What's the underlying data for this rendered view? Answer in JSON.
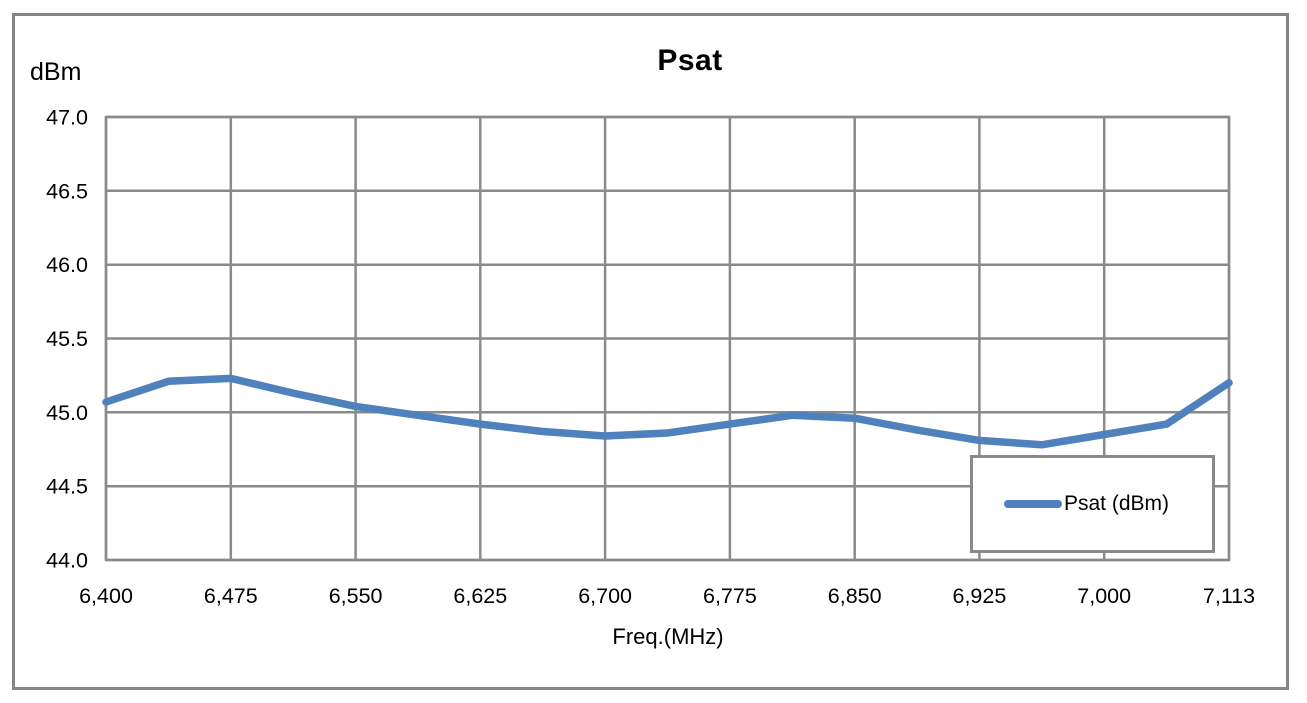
{
  "chart_data": {
    "type": "line",
    "title": "Psat",
    "y_unit_label": "dBm",
    "xlabel": "Freq.(MHz)",
    "ylabel": "",
    "x_tick_labels": [
      "6,400",
      "6,475",
      "6,550",
      "6,625",
      "6,700",
      "6,775",
      "6,850",
      "6,925",
      "7,000",
      "7,113"
    ],
    "x_tick_values": [
      6400,
      6475,
      6550,
      6625,
      6700,
      6775,
      6850,
      6925,
      7000,
      7113
    ],
    "y_tick_labels": [
      "47.0",
      "46.5",
      "46.0",
      "45.5",
      "45.0",
      "44.5",
      "44.0"
    ],
    "y_ticks": [
      47.0,
      46.5,
      46.0,
      45.5,
      45.0,
      44.5,
      44.0
    ],
    "ylim": [
      44.0,
      47.0
    ],
    "grid": "both",
    "legend": {
      "position": "inside-bottom-right",
      "entries": [
        "Psat (dBm)"
      ]
    },
    "series": [
      {
        "name": "Psat (dBm)",
        "color": "#4F81BD",
        "points": [
          [
            6400,
            45.07
          ],
          [
            6437.5,
            45.21
          ],
          [
            6475,
            45.23
          ],
          [
            6512.5,
            45.13
          ],
          [
            6550,
            45.04
          ],
          [
            6587.5,
            44.98
          ],
          [
            6625,
            44.92
          ],
          [
            6662.5,
            44.87
          ],
          [
            6700,
            44.84
          ],
          [
            6737.5,
            44.86
          ],
          [
            6775,
            44.92
          ],
          [
            6812.5,
            44.98
          ],
          [
            6850,
            44.96
          ],
          [
            6887.5,
            44.88
          ],
          [
            6925,
            44.81
          ],
          [
            6962.5,
            44.78
          ],
          [
            7000,
            44.85
          ],
          [
            7056.5,
            44.92
          ],
          [
            7113,
            45.2
          ]
        ]
      }
    ]
  },
  "colors": {
    "grid": "#8a8a8a",
    "frame_border": "#868686",
    "series_blue": "#4F81BD",
    "text": "#000000",
    "background": "#ffffff"
  }
}
